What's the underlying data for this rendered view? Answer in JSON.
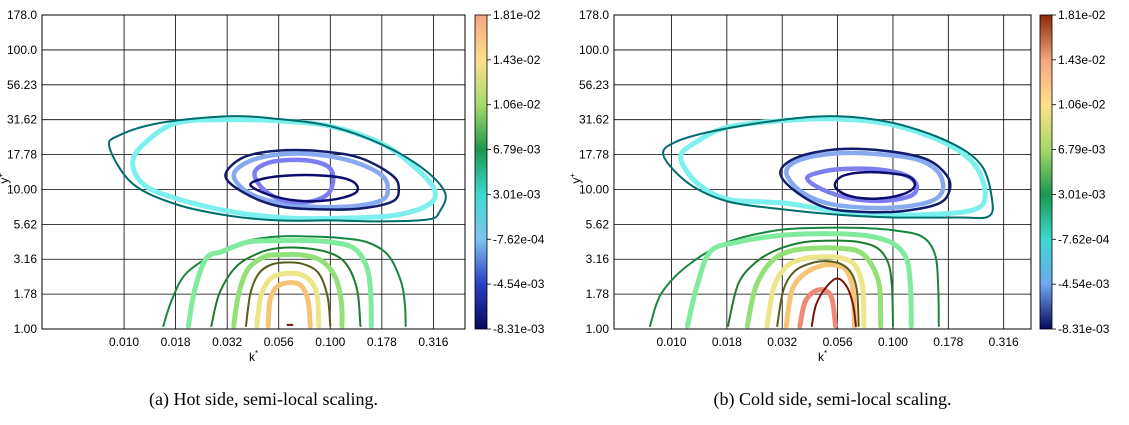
{
  "chart_data": [
    {
      "type": "contour",
      "caption": "(a) Hot side, semi-local scaling.",
      "xlabel": "k*",
      "ylabel": "y*",
      "x_scale": "log",
      "y_scale": "log",
      "xlim": [
        0.004,
        0.45
      ],
      "ylim": [
        1.0,
        178.0
      ],
      "x_ticks": [
        "0.010",
        "0.018",
        "0.032",
        "0.056",
        "0.100",
        "0.178",
        "0.316"
      ],
      "x_tick_values": [
        0.01,
        0.01778,
        0.03162,
        0.05623,
        0.1,
        0.1778,
        0.3162
      ],
      "y_ticks": [
        "1.00",
        "1.78",
        "3.16",
        "5.62",
        "10.00",
        "17.78",
        "31.62",
        "56.23",
        "100.0",
        "178.0"
      ],
      "y_tick_values": [
        1.0,
        1.778,
        3.162,
        5.623,
        10.0,
        17.78,
        31.62,
        56.23,
        100.0,
        178.0
      ],
      "grid": true,
      "colorbar": {
        "labels": [
          "1.81e-02",
          "1.43e-02",
          "1.06e-02",
          "6.79e-03",
          "3.01e-03",
          "-7.62e-04",
          "-4.54e-03",
          "-8.31e-03"
        ],
        "colors": [
          "#f4a582",
          "#fee08b",
          "#a6d96a",
          "#1a9850",
          "#3cd9cf",
          "#7fc4f0",
          "#2c3fc4",
          "#08085e"
        ]
      },
      "contours": [
        {
          "kind": "closed",
          "color": "#7bf0ee",
          "width": 5,
          "x": [
            0.011,
            0.0125,
            0.018,
            0.032,
            0.056,
            0.1,
            0.178,
            0.26,
            0.32,
            0.3,
            0.2,
            0.1,
            0.056,
            0.032,
            0.018,
            0.0125
          ],
          "y": [
            15.5,
            21.3,
            30.0,
            31.6,
            31.0,
            28.4,
            21.3,
            14.2,
            10.0,
            7.8,
            6.5,
            6.2,
            6.3,
            7.0,
            8.6,
            10.8
          ]
        },
        {
          "kind": "closed",
          "color": "#006d6d",
          "width": 2,
          "x": [
            0.0085,
            0.0095,
            0.015,
            0.032,
            0.056,
            0.1,
            0.178,
            0.28,
            0.36,
            0.34,
            0.3,
            0.178,
            0.1,
            0.056,
            0.032,
            0.018,
            0.011
          ],
          "y": [
            20.0,
            24.5,
            30.0,
            33.5,
            32.0,
            28.4,
            21.0,
            14.2,
            9.5,
            7.0,
            6.1,
            5.9,
            6.0,
            6.0,
            6.5,
            7.8,
            11.0
          ]
        },
        {
          "kind": "closed",
          "color": "#87a9ef",
          "width": 4.5,
          "x": [
            0.034,
            0.04,
            0.056,
            0.085,
            0.13,
            0.178,
            0.19,
            0.178,
            0.13,
            0.085,
            0.056,
            0.04
          ],
          "y": [
            12.6,
            15.8,
            17.8,
            17.8,
            15.8,
            12.6,
            10.0,
            8.4,
            7.6,
            7.5,
            8.0,
            9.5
          ]
        },
        {
          "kind": "closed",
          "color": "#111d6a",
          "width": 2.5,
          "x": [
            0.031,
            0.038,
            0.056,
            0.09,
            0.14,
            0.2,
            0.215,
            0.2,
            0.14,
            0.09,
            0.056,
            0.038
          ],
          "y": [
            12.6,
            17.0,
            19.0,
            18.8,
            16.8,
            12.6,
            10.0,
            8.2,
            7.3,
            7.2,
            7.6,
            9.5
          ]
        },
        {
          "kind": "closed",
          "color": "#7d7df0",
          "width": 4.5,
          "x": [
            0.043,
            0.05,
            0.065,
            0.085,
            0.1,
            0.103,
            0.095,
            0.075,
            0.056,
            0.046
          ],
          "y": [
            13.3,
            15.5,
            16.3,
            15.8,
            14.1,
            11.2,
            9.0,
            8.1,
            8.6,
            10.5
          ]
        },
        {
          "kind": "closed",
          "color": "#0c0c6e",
          "width": 2.5,
          "x": [
            0.041,
            0.048,
            0.063,
            0.09,
            0.12,
            0.135,
            0.13,
            0.1,
            0.07,
            0.05
          ],
          "y": [
            10.8,
            12.0,
            12.6,
            12.6,
            11.9,
            10.6,
            9.3,
            8.4,
            8.3,
            9.2
          ]
        },
        {
          "kind": "open",
          "color": "#17873f",
          "width": 2,
          "x": [
            0.0155,
            0.017,
            0.02,
            0.028,
            0.04,
            0.056,
            0.08,
            0.11,
            0.15,
            0.19,
            0.22,
            0.23,
            0.232
          ],
          "y": [
            1.05,
            1.6,
            2.5,
            3.5,
            4.3,
            4.6,
            4.6,
            4.5,
            4.2,
            3.4,
            2.2,
            1.5,
            1.05
          ]
        },
        {
          "kind": "open",
          "color": "#80ea9d",
          "width": 5,
          "x": [
            0.0205,
            0.022,
            0.025,
            0.03,
            0.04,
            0.056,
            0.08,
            0.1,
            0.13,
            0.15,
            0.157,
            0.158
          ],
          "y": [
            1.05,
            1.9,
            3.2,
            3.6,
            4.2,
            4.3,
            4.3,
            4.2,
            3.8,
            2.8,
            1.8,
            1.05
          ]
        },
        {
          "kind": "open",
          "color": "#1d7b2f",
          "width": 2,
          "x": [
            0.0265,
            0.029,
            0.035,
            0.045,
            0.056,
            0.075,
            0.1,
            0.12,
            0.135,
            0.14
          ],
          "y": [
            1.05,
            1.8,
            2.8,
            3.5,
            3.8,
            3.8,
            3.5,
            2.9,
            1.9,
            1.05
          ]
        },
        {
          "kind": "open",
          "color": "#93e079",
          "width": 5,
          "x": [
            0.034,
            0.036,
            0.04,
            0.048,
            0.056,
            0.072,
            0.09,
            0.105,
            0.113,
            0.114
          ],
          "y": [
            1.05,
            1.8,
            2.7,
            3.3,
            3.4,
            3.4,
            3.1,
            2.4,
            1.6,
            1.05
          ]
        },
        {
          "kind": "open",
          "color": "#5a5a1a",
          "width": 2,
          "x": [
            0.039,
            0.041,
            0.045,
            0.052,
            0.063,
            0.075,
            0.088,
            0.097,
            0.1
          ],
          "y": [
            1.05,
            1.8,
            2.5,
            2.9,
            3.0,
            2.9,
            2.5,
            1.7,
            1.05
          ]
        },
        {
          "kind": "open",
          "color": "#ece688",
          "width": 5,
          "x": [
            0.044,
            0.046,
            0.05,
            0.056,
            0.068,
            0.078,
            0.086,
            0.088
          ],
          "y": [
            1.05,
            1.7,
            2.2,
            2.45,
            2.5,
            2.3,
            1.8,
            1.05
          ]
        },
        {
          "kind": "open",
          "color": "#f6c476",
          "width": 5,
          "x": [
            0.05,
            0.051,
            0.055,
            0.063,
            0.072,
            0.078,
            0.08
          ],
          "y": [
            1.05,
            1.6,
            2.0,
            2.15,
            2.05,
            1.6,
            1.05
          ]
        },
        {
          "kind": "open",
          "color": "#7a1406",
          "width": 2,
          "x": [
            0.062,
            0.0655
          ],
          "y": [
            1.07,
            1.07
          ]
        }
      ]
    },
    {
      "type": "contour",
      "caption": "(b) Cold side, semi-local scaling.",
      "xlabel": "k*",
      "ylabel": "y*",
      "x_scale": "log",
      "y_scale": "log",
      "xlim": [
        0.0055,
        0.42
      ],
      "ylim": [
        1.0,
        178.0
      ],
      "x_ticks": [
        "0.010",
        "0.018",
        "0.032",
        "0.056",
        "0.100",
        "0.178",
        "0.316"
      ],
      "x_tick_values": [
        0.01,
        0.01778,
        0.03162,
        0.05623,
        0.1,
        0.1778,
        0.3162
      ],
      "y_ticks": [
        "1.00",
        "1.78",
        "3.16",
        "5.62",
        "10.00",
        "17.78",
        "31.62",
        "56.23",
        "100.0",
        "178.0"
      ],
      "y_tick_values": [
        1.0,
        1.778,
        3.162,
        5.623,
        10.0,
        17.78,
        31.62,
        56.23,
        100.0,
        178.0
      ],
      "grid": true,
      "colorbar": {
        "labels": [
          "1.81e-02",
          "1.43e-02",
          "1.06e-02",
          "6.79e-03",
          "3.01e-03",
          "-7.62e-04",
          "-4.54e-03",
          "-8.31e-03"
        ],
        "colors": [
          "#8a2a0b",
          "#f4a582",
          "#fee08b",
          "#a6d96a",
          "#1a9850",
          "#3cd9cf",
          "#6fa8f0",
          "#08085e"
        ]
      },
      "contours": [
        {
          "kind": "closed",
          "color": "#7bf0ee",
          "width": 5,
          "x": [
            0.011,
            0.013,
            0.018,
            0.032,
            0.056,
            0.1,
            0.178,
            0.24,
            0.26,
            0.22,
            0.14,
            0.1,
            0.056,
            0.032,
            0.018,
            0.013
          ],
          "y": [
            17.0,
            22.0,
            28.0,
            31.2,
            32.0,
            29.0,
            21.0,
            14.2,
            8.5,
            7.0,
            6.6,
            6.6,
            7.0,
            8.0,
            8.5,
            11.2
          ]
        },
        {
          "kind": "closed",
          "color": "#006d6d",
          "width": 2,
          "x": [
            0.0092,
            0.0105,
            0.016,
            0.032,
            0.056,
            0.1,
            0.178,
            0.25,
            0.28,
            0.27,
            0.2,
            0.1,
            0.056,
            0.032,
            0.018,
            0.012
          ],
          "y": [
            17.5,
            22.0,
            26.5,
            31.6,
            33.5,
            30.0,
            22.0,
            15.0,
            8.5,
            6.4,
            6.3,
            6.3,
            6.6,
            7.2,
            8.2,
            11.0
          ]
        },
        {
          "kind": "closed",
          "color": "#87a9ef",
          "width": 4.5,
          "x": [
            0.033,
            0.038,
            0.056,
            0.09,
            0.13,
            0.16,
            0.168,
            0.15,
            0.11,
            0.075,
            0.05,
            0.038
          ],
          "y": [
            13.3,
            16.3,
            18.2,
            17.8,
            16.3,
            13.3,
            10.0,
            8.3,
            7.5,
            7.4,
            8.0,
            9.8
          ]
        },
        {
          "kind": "closed",
          "color": "#111d6a",
          "width": 2.5,
          "x": [
            0.031,
            0.037,
            0.056,
            0.09,
            0.14,
            0.175,
            0.18,
            0.16,
            0.11,
            0.075,
            0.05,
            0.036
          ],
          "y": [
            13.3,
            17.0,
            19.4,
            19.0,
            16.6,
            12.6,
            9.8,
            7.9,
            7.0,
            6.9,
            7.4,
            9.8
          ]
        },
        {
          "kind": "closed",
          "color": "#7d7df0",
          "width": 4.5,
          "x": [
            0.041,
            0.05,
            0.065,
            0.09,
            0.115,
            0.128,
            0.12,
            0.09,
            0.065,
            0.048
          ],
          "y": [
            12.1,
            13.6,
            14.1,
            13.8,
            12.6,
            10.7,
            9.0,
            8.3,
            8.6,
            10.0
          ]
        },
        {
          "kind": "closed",
          "color": "#0c0c6e",
          "width": 2.5,
          "x": [
            0.055,
            0.06,
            0.075,
            0.1,
            0.12,
            0.125,
            0.11,
            0.085,
            0.065,
            0.056
          ],
          "y": [
            11.2,
            12.6,
            13.3,
            13.0,
            12.2,
            10.5,
            9.2,
            8.6,
            8.9,
            10.0
          ]
        },
        {
          "kind": "open",
          "color": "#17873f",
          "width": 2,
          "x": [
            0.008,
            0.009,
            0.012,
            0.018,
            0.03,
            0.045,
            0.07,
            0.1,
            0.135,
            0.155,
            0.16,
            0.161
          ],
          "y": [
            1.05,
            1.8,
            2.9,
            4.2,
            5.1,
            5.3,
            5.3,
            5.1,
            4.6,
            3.4,
            2.0,
            1.05
          ]
        },
        {
          "kind": "open",
          "color": "#80ea9d",
          "width": 5,
          "x": [
            0.0118,
            0.013,
            0.015,
            0.02,
            0.028,
            0.04,
            0.06,
            0.08,
            0.1,
            0.115,
            0.12,
            0.121
          ],
          "y": [
            1.05,
            2.0,
            3.6,
            4.2,
            4.6,
            4.8,
            4.8,
            4.6,
            4.1,
            3.2,
            2.0,
            1.05
          ]
        },
        {
          "kind": "open",
          "color": "#1d7b2f",
          "width": 2,
          "x": [
            0.018,
            0.02,
            0.024,
            0.03,
            0.04,
            0.056,
            0.07,
            0.085,
            0.095,
            0.099,
            0.1
          ],
          "y": [
            1.05,
            2.1,
            3.0,
            3.7,
            4.2,
            4.3,
            4.2,
            3.8,
            3.0,
            2.0,
            1.05
          ]
        },
        {
          "kind": "open",
          "color": "#93e079",
          "width": 5,
          "x": [
            0.022,
            0.024,
            0.028,
            0.034,
            0.045,
            0.056,
            0.07,
            0.08,
            0.087,
            0.088
          ],
          "y": [
            1.05,
            2.0,
            3.0,
            3.6,
            3.8,
            3.8,
            3.6,
            2.9,
            2.0,
            1.05
          ]
        },
        {
          "kind": "open",
          "color": "#ece688",
          "width": 5,
          "x": [
            0.027,
            0.029,
            0.033,
            0.04,
            0.05,
            0.06,
            0.068,
            0.073,
            0.074
          ],
          "y": [
            1.05,
            2.0,
            2.8,
            3.2,
            3.3,
            3.2,
            2.8,
            2.0,
            1.05
          ]
        },
        {
          "kind": "open",
          "color": "#f6c476",
          "width": 5,
          "x": [
            0.033,
            0.035,
            0.04,
            0.048,
            0.056,
            0.062,
            0.066,
            0.067
          ],
          "y": [
            1.05,
            1.9,
            2.5,
            2.85,
            2.85,
            2.6,
            1.9,
            1.05
          ]
        },
        {
          "kind": "open",
          "color": "#5a5a1a",
          "width": 2,
          "x": [
            0.03,
            0.032,
            0.036,
            0.044,
            0.052,
            0.06,
            0.066,
            0.069,
            0.07
          ],
          "y": [
            1.05,
            1.9,
            2.6,
            3.0,
            3.05,
            2.85,
            2.4,
            1.8,
            1.05
          ]
        },
        {
          "kind": "open",
          "color": "#f08a78",
          "width": 5,
          "x": [
            0.038,
            0.04,
            0.044,
            0.049,
            0.053,
            0.055
          ],
          "y": [
            1.05,
            1.55,
            1.85,
            1.9,
            1.65,
            1.05
          ]
        },
        {
          "kind": "open",
          "color": "#7a1406",
          "width": 2,
          "x": [
            0.043,
            0.045,
            0.05,
            0.056,
            0.062,
            0.066,
            0.068
          ],
          "y": [
            1.05,
            1.5,
            2.0,
            2.3,
            2.0,
            1.5,
            1.05
          ]
        }
      ]
    }
  ]
}
